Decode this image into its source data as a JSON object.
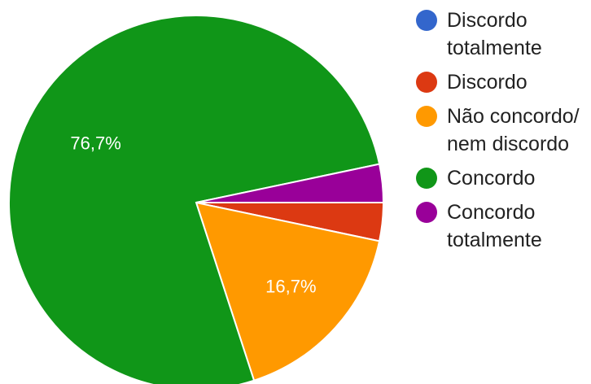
{
  "chart_data": {
    "type": "pie",
    "title": "",
    "legend_position": "right",
    "series": [
      {
        "name": "Discordo totalmente",
        "value": 0,
        "color": "#3366cc",
        "label": ""
      },
      {
        "name": "Discordo",
        "value": 3.3,
        "color": "#dc3912",
        "label": ""
      },
      {
        "name": "Não concordo/ nem discordo",
        "value": 16.7,
        "color": "#ff9900",
        "label": "16,7%"
      },
      {
        "name": "Concordo",
        "value": 76.7,
        "color": "#109618",
        "label": "76,7%"
      },
      {
        "name": "Concordo totalmente",
        "value": 3.3,
        "color": "#990099",
        "label": ""
      }
    ]
  }
}
